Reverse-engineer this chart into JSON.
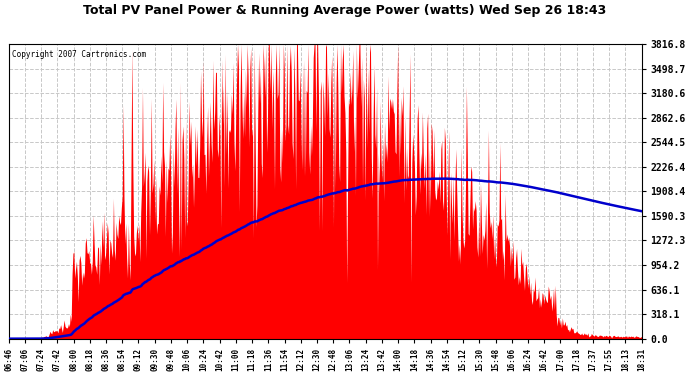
{
  "title": "Total PV Panel Power & Running Average Power (watts) Wed Sep 26 18:43",
  "copyright": "Copyright 2007 Cartronics.com",
  "yticks": [
    0.0,
    318.1,
    636.1,
    954.2,
    1272.3,
    1590.3,
    1908.4,
    2226.4,
    2544.5,
    2862.6,
    3180.6,
    3498.7,
    3816.8
  ],
  "ymax": 3816.8,
  "xtick_labels": [
    "06:46",
    "07:06",
    "07:24",
    "07:42",
    "08:00",
    "08:18",
    "08:36",
    "08:54",
    "09:12",
    "09:30",
    "09:48",
    "10:06",
    "10:24",
    "10:42",
    "11:00",
    "11:18",
    "11:36",
    "11:54",
    "12:12",
    "12:30",
    "12:48",
    "13:06",
    "13:24",
    "13:42",
    "14:00",
    "14:18",
    "14:36",
    "14:54",
    "15:12",
    "15:30",
    "15:48",
    "16:06",
    "16:24",
    "16:42",
    "17:00",
    "17:18",
    "17:37",
    "17:55",
    "18:13",
    "18:31"
  ],
  "bg_color": "#ffffff",
  "plot_bg": "#ffffff",
  "fill_color": "#ff0000",
  "line_color": "#0000cc",
  "title_color": "#000000",
  "grid_color": "#c8c8c8",
  "grid_style": "--"
}
